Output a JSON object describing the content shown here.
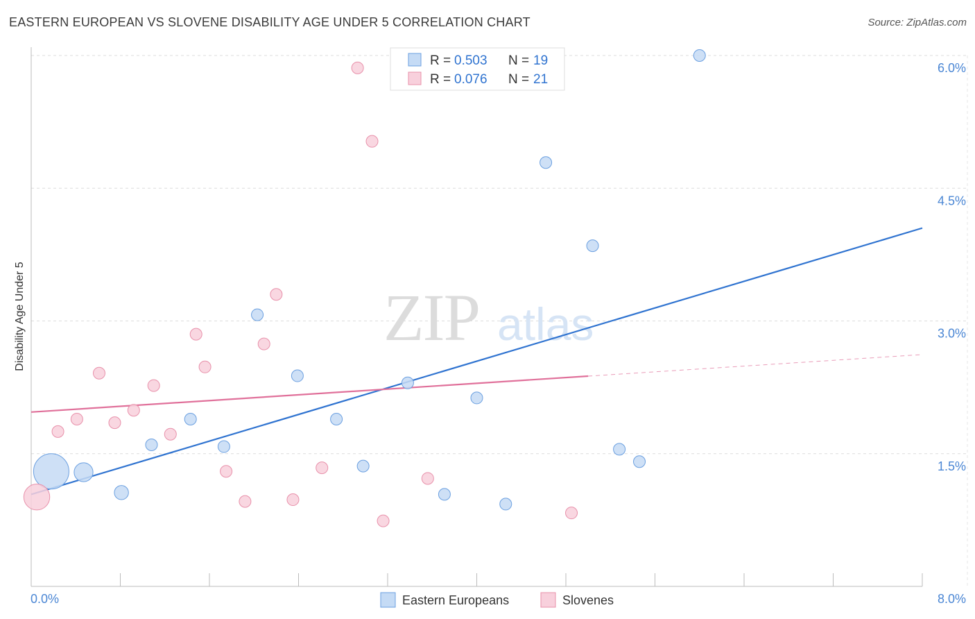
{
  "title": "EASTERN EUROPEAN VS SLOVENE DISABILITY AGE UNDER 5 CORRELATION CHART",
  "source": "Source: ZipAtlas.com",
  "watermark": {
    "zip": "ZIP",
    "atlas": "atlas"
  },
  "chart_data": {
    "type": "scatter",
    "title": "EASTERN EUROPEAN VS SLOVENE DISABILITY AGE UNDER 5 CORRELATION CHART",
    "xlabel": "",
    "ylabel": "Disability Age Under 5",
    "xlim": [
      0.0,
      8.0
    ],
    "ylim": [
      0.0,
      6.0
    ],
    "x_tick_labels": [
      "0.0%",
      "8.0%"
    ],
    "y_ticks": [
      1.5,
      3.0,
      4.5,
      6.0
    ],
    "y_tick_labels": [
      "1.5%",
      "3.0%",
      "4.5%",
      "6.0%"
    ],
    "grid": true,
    "legend_position": "top-center",
    "series": [
      {
        "name": "Eastern Europeans",
        "color": "#6a9fe0",
        "fill": "#c5dbf5",
        "line_color": "#2f73d0",
        "stats": {
          "r_label": "R =",
          "r": "0.503",
          "n_label": "N =",
          "n": "19"
        },
        "points": [
          {
            "x": 0.18,
            "y": 1.3,
            "size": 3
          },
          {
            "x": 0.47,
            "y": 1.29,
            "size": 1.6
          },
          {
            "x": 0.81,
            "y": 1.06,
            "size": 1.2
          },
          {
            "x": 1.08,
            "y": 1.6,
            "size": 1
          },
          {
            "x": 1.43,
            "y": 1.89,
            "size": 1
          },
          {
            "x": 1.73,
            "y": 1.58,
            "size": 1
          },
          {
            "x": 2.03,
            "y": 3.07,
            "size": 1
          },
          {
            "x": 2.39,
            "y": 2.38,
            "size": 1
          },
          {
            "x": 2.74,
            "y": 1.89,
            "size": 1
          },
          {
            "x": 2.98,
            "y": 1.36,
            "size": 1
          },
          {
            "x": 3.38,
            "y": 2.3,
            "size": 1
          },
          {
            "x": 3.71,
            "y": 1.04,
            "size": 1
          },
          {
            "x": 4.0,
            "y": 2.13,
            "size": 1
          },
          {
            "x": 4.26,
            "y": 0.93,
            "size": 1
          },
          {
            "x": 4.62,
            "y": 4.79,
            "size": 1
          },
          {
            "x": 5.04,
            "y": 3.85,
            "size": 1
          },
          {
            "x": 5.28,
            "y": 1.55,
            "size": 1
          },
          {
            "x": 5.46,
            "y": 1.41,
            "size": 1
          },
          {
            "x": 6.0,
            "y": 6.0,
            "size": 1
          }
        ],
        "trend": {
          "x0": 0.0,
          "y0": 1.04,
          "x1": 8.0,
          "y1": 4.05,
          "dashed_from": null
        }
      },
      {
        "name": "Slovenes",
        "color": "#e890aa",
        "fill": "#f8d0dc",
        "line_color": "#e0709a",
        "stats": {
          "r_label": "R =",
          "r": "0.076",
          "n_label": "N =",
          "n": "21"
        },
        "points": [
          {
            "x": 0.05,
            "y": 1.01,
            "size": 2.2
          },
          {
            "x": 0.24,
            "y": 1.75,
            "size": 1
          },
          {
            "x": 0.41,
            "y": 1.89,
            "size": 1
          },
          {
            "x": 0.61,
            "y": 2.41,
            "size": 1
          },
          {
            "x": 0.75,
            "y": 1.85,
            "size": 1
          },
          {
            "x": 0.92,
            "y": 1.99,
            "size": 1
          },
          {
            "x": 1.1,
            "y": 2.27,
            "size": 1
          },
          {
            "x": 1.25,
            "y": 1.72,
            "size": 1
          },
          {
            "x": 1.48,
            "y": 2.85,
            "size": 1
          },
          {
            "x": 1.56,
            "y": 2.48,
            "size": 1
          },
          {
            "x": 1.75,
            "y": 1.3,
            "size": 1
          },
          {
            "x": 1.92,
            "y": 0.96,
            "size": 1
          },
          {
            "x": 2.09,
            "y": 2.74,
            "size": 1
          },
          {
            "x": 2.2,
            "y": 3.3,
            "size": 1
          },
          {
            "x": 2.35,
            "y": 0.98,
            "size": 1
          },
          {
            "x": 2.61,
            "y": 1.34,
            "size": 1
          },
          {
            "x": 2.93,
            "y": 5.86,
            "size": 1
          },
          {
            "x": 3.06,
            "y": 5.03,
            "size": 1
          },
          {
            "x": 3.16,
            "y": 0.74,
            "size": 1
          },
          {
            "x": 3.56,
            "y": 1.22,
            "size": 1
          },
          {
            "x": 4.85,
            "y": 0.83,
            "size": 1
          }
        ],
        "trend": {
          "x0": 0.0,
          "y0": 1.97,
          "x1": 8.0,
          "y1": 2.62,
          "dashed_from": 5.0
        }
      }
    ]
  }
}
